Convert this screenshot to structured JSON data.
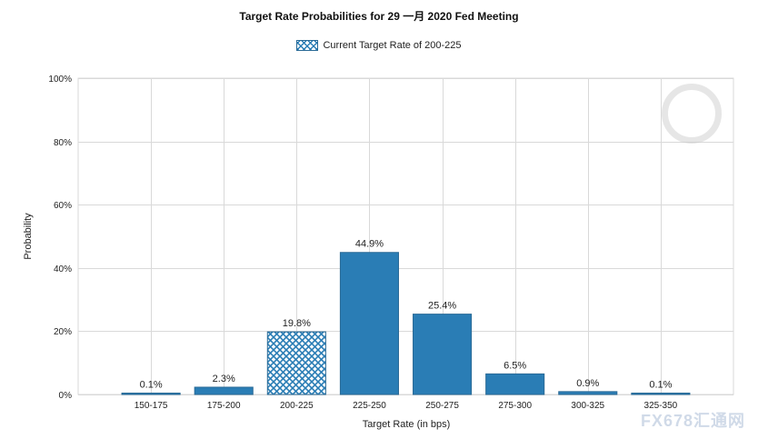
{
  "chart_data": {
    "type": "bar",
    "title": "Target Rate Probabilities for 29 一月 2020 Fed Meeting",
    "legend": {
      "label": "Current Target Rate of 200-225",
      "placement": "top-center"
    },
    "categories": [
      "150-175",
      "175-200",
      "200-225",
      "225-250",
      "250-275",
      "275-300",
      "300-325",
      "325-350"
    ],
    "values": [
      0.1,
      2.3,
      19.8,
      44.9,
      25.4,
      6.5,
      0.9,
      0.1
    ],
    "data_labels": [
      "0.1%",
      "2.3%",
      "19.8%",
      "44.9%",
      "25.4%",
      "6.5%",
      "0.9%",
      "0.1%"
    ],
    "highlight_category": "200-225",
    "xlabel": "Target Rate (in bps)",
    "ylabel": "Probability",
    "ylim": [
      0,
      100
    ],
    "y_ticks": [
      0,
      20,
      40,
      60,
      80,
      100
    ],
    "y_tick_labels": [
      "0%",
      "20%",
      "40%",
      "60%",
      "80%",
      "100%"
    ],
    "grid": true,
    "colors": {
      "bar": "#2a7db5",
      "bar_edge": "#2a6a96",
      "grid": "#d9d9d9"
    }
  },
  "watermark": {
    "text": "FX678汇通网"
  }
}
